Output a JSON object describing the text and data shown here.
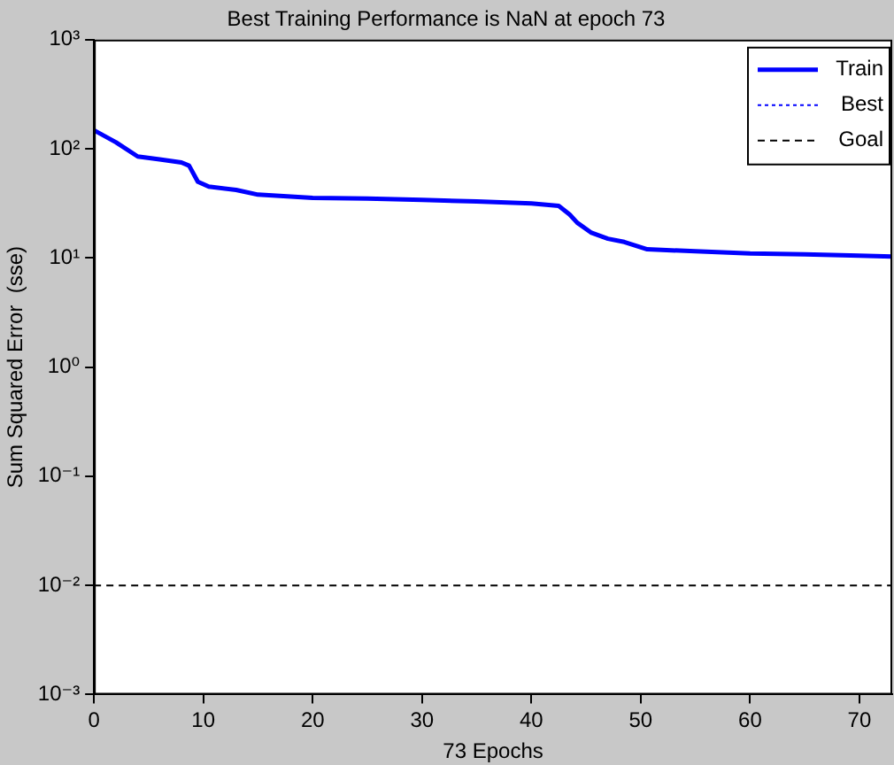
{
  "chart_data": {
    "type": "line",
    "title": "Best Training Performance is NaN at epoch 73",
    "xlabel": "73 Epochs",
    "ylabel": "Sum Squared Error  (sse)",
    "log": "y",
    "grid": false,
    "legend": "top right",
    "marker": "none",
    "xlim": [
      0,
      73
    ],
    "xticks": [
      0,
      10,
      20,
      30,
      40,
      50,
      60,
      70
    ],
    "ylim": [
      0.001,
      1000
    ],
    "yticks": [
      {
        "value": 0.001,
        "label": "10⁻³"
      },
      {
        "value": 0.01,
        "label": "10⁻²"
      },
      {
        "value": 0.1,
        "label": "10⁻¹"
      },
      {
        "value": 1,
        "label": "10⁰"
      },
      {
        "value": 10,
        "label": "10¹"
      },
      {
        "value": 100,
        "label": "10²"
      },
      {
        "value": 1000,
        "label": "10³"
      }
    ],
    "series": [
      {
        "name": "Train",
        "color": "#0000ff",
        "line_style": "solid",
        "x": [
          0,
          2,
          4,
          6,
          8,
          8.7,
          9.5,
          10.5,
          13,
          15,
          20,
          25,
          30,
          35,
          40,
          42.5,
          43.5,
          44.2,
          45.5,
          47,
          48.5,
          50.6,
          55,
          60,
          65,
          70,
          73
        ],
        "values": [
          148,
          115,
          85,
          80,
          75,
          70,
          50,
          45,
          42,
          38,
          35.5,
          35,
          34,
          33,
          31.6,
          30,
          25,
          21,
          17,
          15,
          14,
          12,
          11.5,
          11,
          10.8,
          10.5,
          10.3
        ]
      },
      {
        "name": "Best",
        "color": "#0000ff",
        "line_style": "dotted"
      },
      {
        "name": "Goal",
        "color": "#000000",
        "line_style": "dashed",
        "x": [
          0,
          73
        ],
        "values": [
          0.01,
          0.01
        ]
      }
    ]
  }
}
